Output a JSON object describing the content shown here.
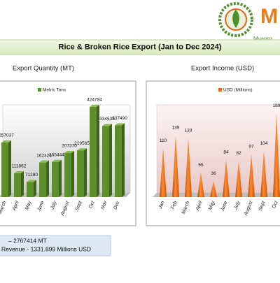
{
  "logo": {
    "letter": "M",
    "text": "Myanm"
  },
  "banner": {
    "title": "Rice & Broken Rice Export (Jan to Dec 2024)"
  },
  "chart_data": [
    {
      "type": "bar",
      "title": "Export Quantity (MT)",
      "categories": [
        "March",
        "April",
        "May",
        "June",
        "July",
        "August",
        "Sept",
        "Oct",
        "Nov",
        "Dec"
      ],
      "series": [
        {
          "name": "Metric Tons",
          "color": "#5e8f2c",
          "values": [
            257037,
            111862,
            71280,
            162326,
            165444,
            207370,
            219565,
            424784,
            334535,
            337490
          ]
        }
      ],
      "ylim": [
        0,
        500000
      ]
    },
    {
      "type": "cone",
      "title": "Export Income (USD)",
      "categories": [
        "Jan",
        "Feb",
        "March",
        "April",
        "May",
        "June",
        "July",
        "August",
        "Sept",
        "Oct"
      ],
      "series": [
        {
          "name": "USD (Millions)",
          "color": "#e8650f",
          "values": [
            110,
            139,
            133,
            55,
            36,
            84,
            82,
            97,
            104,
            189
          ]
        }
      ],
      "ylim": [
        0,
        240
      ]
    }
  ],
  "summary": {
    "lines": [
      "–  2767414 MT",
      "Revenue  -  1331.899 Millions USD"
    ]
  }
}
